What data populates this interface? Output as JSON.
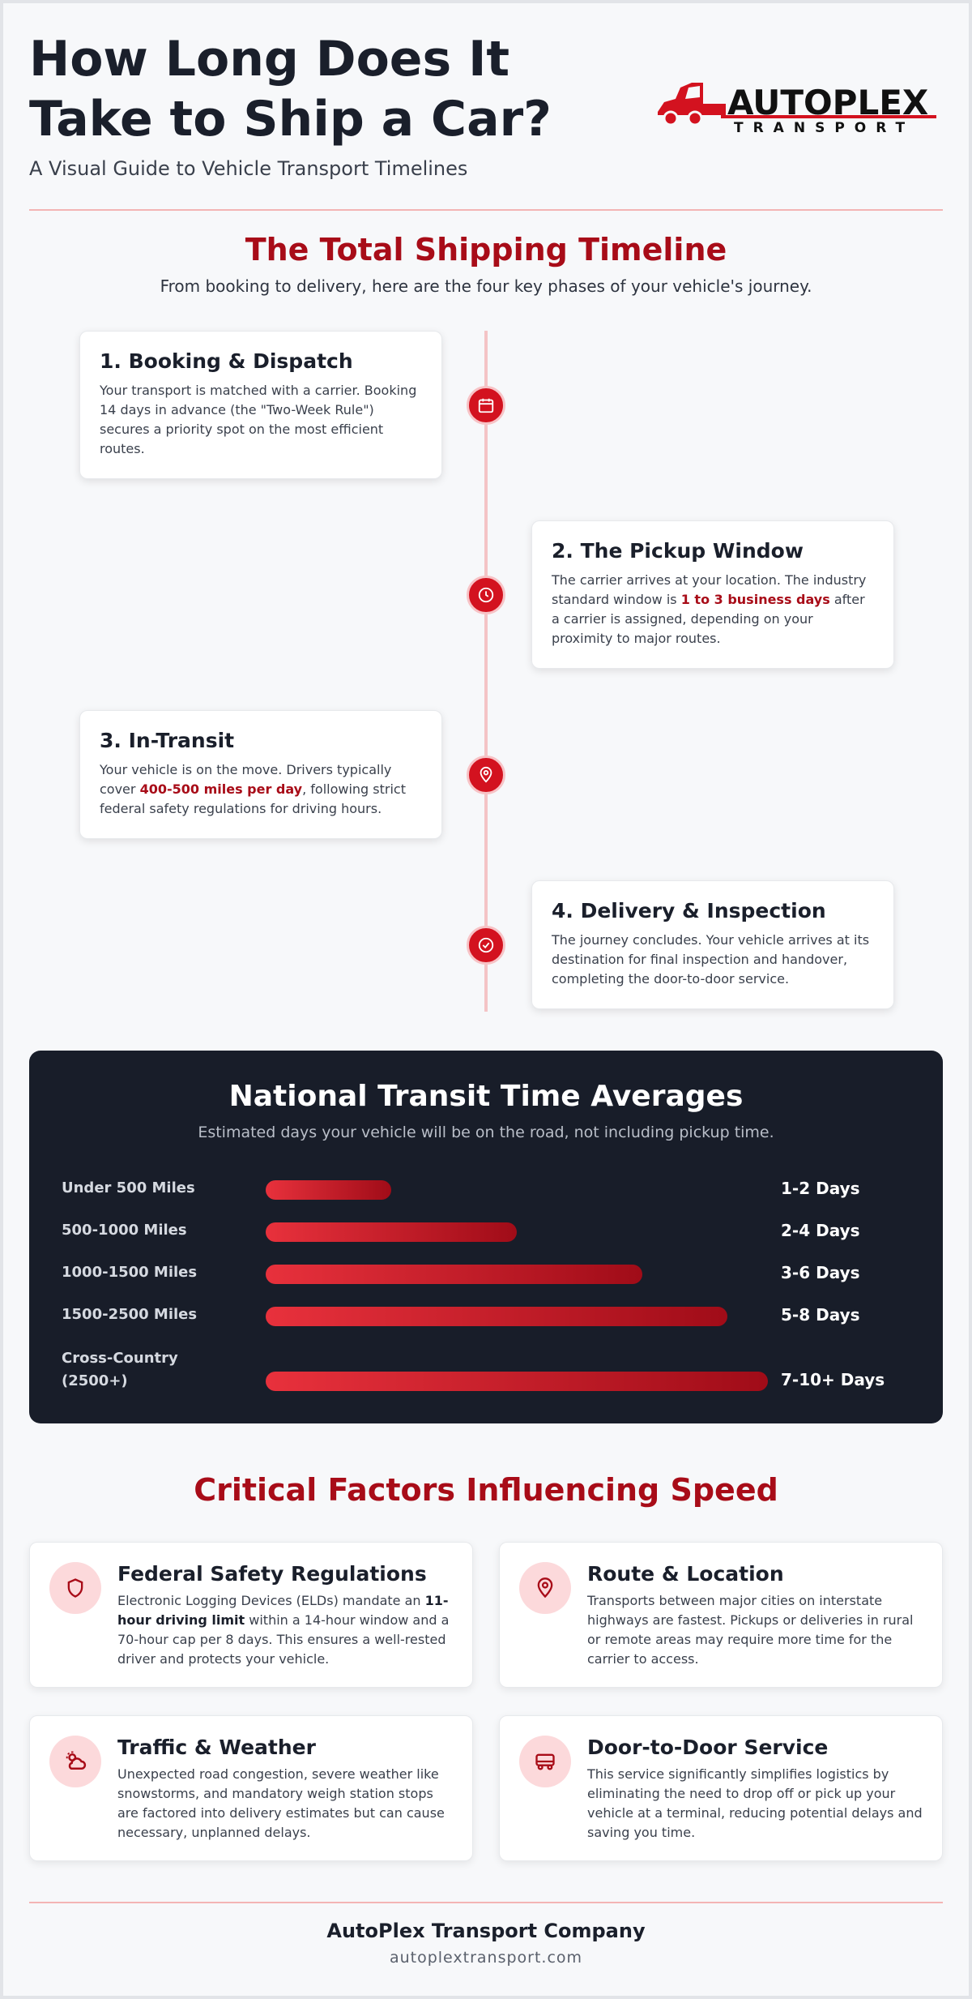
{
  "header": {
    "title": "How Long Does It Take to Ship a Car?",
    "subtitle": "A Visual Guide to Vehicle Transport Timelines",
    "logo": {
      "name": "AUTOPLEX",
      "tagline": "TRANSPORT",
      "icon": "truck-logo-icon"
    }
  },
  "timeline": {
    "title": "The Total Shipping Timeline",
    "subtitle": "From booking to delivery, here are the four key phases of your vehicle's journey.",
    "steps": [
      {
        "title": "1. Booking & Dispatch",
        "text": "Your transport is matched with a carrier. Booking 14 days in advance (the \"Two-Week Rule\") secures a priority spot on the most efficient routes.",
        "icon": "calendar-icon"
      },
      {
        "title": "2. The Pickup Window",
        "text_before": "The carrier arrives at your location. The industry standard window is ",
        "highlight": "1 to 3 business days",
        "text_after": " after a carrier is assigned, depending on your proximity to major routes.",
        "icon": "clock-icon"
      },
      {
        "title": "3. In-Transit",
        "text_before": "Your vehicle is on the move. Drivers typically cover ",
        "highlight": "400-500 miles per day",
        "text_after": ", following strict federal safety regulations for driving hours.",
        "icon": "map-pin-icon"
      },
      {
        "title": "4. Delivery & Inspection",
        "text": "The journey concludes. Your vehicle arrives at its destination for final inspection and handover, completing the door-to-door service.",
        "icon": "check-circle-icon"
      }
    ]
  },
  "transit": {
    "title": "National Transit Time Averages",
    "subtitle": "Estimated days your vehicle will be on the road, not including pickup time.",
    "rows": [
      {
        "label": "Under 500 Miles",
        "value": "1-2 Days",
        "fill": 0.25
      },
      {
        "label": "500-1000 Miles",
        "value": "2-4 Days",
        "fill": 0.5
      },
      {
        "label": "1000-1500 Miles",
        "value": "3-6 Days",
        "fill": 0.75
      },
      {
        "label": "1500-2500 Miles",
        "value": "5-8 Days",
        "fill": 0.92
      },
      {
        "label": "Cross-Country (2500+)",
        "value": "7-10+ Days",
        "fill": 1.0
      }
    ]
  },
  "factors": {
    "title": "Critical Factors Influencing Speed",
    "items": [
      {
        "title": "Federal Safety Regulations",
        "text_before": "Electronic Logging Devices (ELDs) mandate an ",
        "bold": "11-hour driving limit",
        "text_after": " within a 14-hour window and a 70-hour cap per 8 days. This ensures a well-rested driver and protects your vehicle.",
        "icon": "shield-icon"
      },
      {
        "title": "Route & Location",
        "text": "Transports between major cities on interstate highways are fastest. Pickups or deliveries in rural or remote areas may require more time for the carrier to access.",
        "icon": "location-pin-icon"
      },
      {
        "title": "Traffic & Weather",
        "text": "Unexpected road congestion, severe weather like snowstorms, and mandatory weigh station stops are factored into delivery estimates but can cause necessary, unplanned delays.",
        "icon": "cloud-sun-icon"
      },
      {
        "title": "Door-to-Door Service",
        "text": "This service significantly simplifies logistics by eliminating the need to drop off or pick up your vehicle at a terminal, reducing potential delays and saving you time.",
        "icon": "truck-icon"
      }
    ]
  },
  "footer": {
    "company": "AutoPlex Transport Company",
    "url": "autoplextransport.com"
  },
  "colors": {
    "accent": "#d3121f",
    "accent_dark": "#a80c18",
    "dark_panel": "#181d29"
  }
}
